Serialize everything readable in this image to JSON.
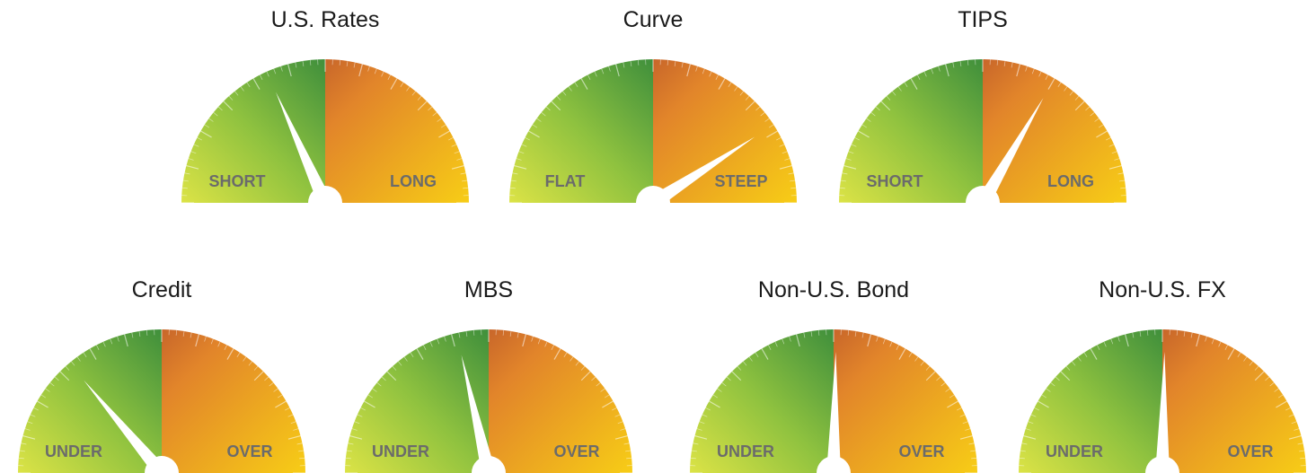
{
  "chart_data": [
    {
      "type": "gauge",
      "title": "U.S. Rates",
      "categories": [
        "SHORT",
        "LONG"
      ],
      "value": 66,
      "range": [
        0,
        180
      ]
    },
    {
      "type": "gauge",
      "title": "Curve",
      "categories": [
        "FLAT",
        "STEEP"
      ],
      "value": 147,
      "range": [
        0,
        180
      ]
    },
    {
      "type": "gauge",
      "title": "TIPS",
      "categories": [
        "SHORT",
        "LONG"
      ],
      "value": 120,
      "range": [
        0,
        180
      ]
    },
    {
      "type": "gauge",
      "title": "Credit",
      "categories": [
        "UNDER",
        "OVER"
      ],
      "value": 50,
      "range": [
        0,
        180
      ]
    },
    {
      "type": "gauge",
      "title": "MBS",
      "categories": [
        "UNDER",
        "OVER"
      ],
      "value": 77,
      "range": [
        0,
        180
      ]
    },
    {
      "type": "gauge",
      "title": "Non-U.S. Bond",
      "categories": [
        "UNDER",
        "OVER"
      ],
      "value": 91,
      "range": [
        0,
        180
      ]
    },
    {
      "type": "gauge",
      "title": "Non-U.S. FX",
      "categories": [
        "UNDER",
        "OVER"
      ],
      "value": 91,
      "range": [
        0,
        180
      ]
    }
  ]
}
